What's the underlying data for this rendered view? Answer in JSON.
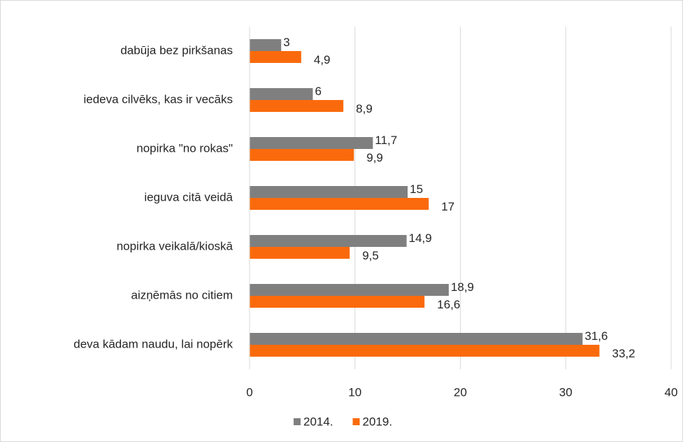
{
  "chart_data": {
    "type": "bar",
    "orientation": "horizontal",
    "categories": [
      "dabūja bez pirkšanas",
      "iedeva cilvēks, kas ir vecāks",
      "nopirka \"no rokas\"",
      "ieguva citā veidā",
      "nopirka veikalā/kioskā",
      "aizņēmās no citiem",
      "deva kādam naudu, lai nopērk"
    ],
    "series": [
      {
        "name": "2014.",
        "color": "#7f7f7f",
        "values": [
          3,
          6,
          11.7,
          15,
          14.9,
          18.9,
          31.6
        ],
        "value_labels": [
          "3",
          "6",
          "11,7",
          "15",
          "14,9",
          "18,9",
          "31,6"
        ]
      },
      {
        "name": "2019.",
        "color": "#fa6a0c",
        "values": [
          4.9,
          8.9,
          9.9,
          17,
          9.5,
          16.6,
          33.2
        ],
        "value_labels": [
          "4,9",
          "8,9",
          "9,9",
          "17",
          "9,5",
          "16,6",
          "33,2"
        ]
      }
    ],
    "xlim": [
      0,
      40
    ],
    "xticks": [
      0,
      10,
      20,
      30,
      40
    ],
    "grid": true,
    "legend": "bottom"
  }
}
